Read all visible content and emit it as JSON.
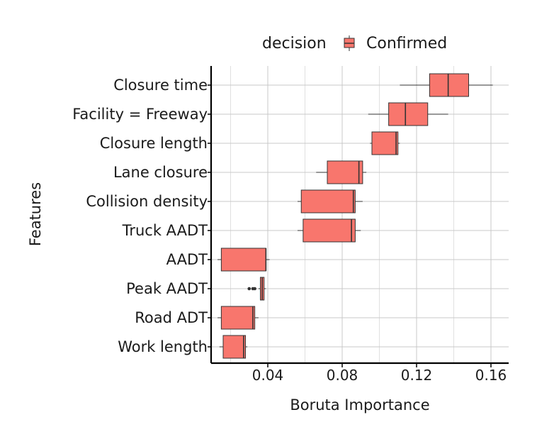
{
  "chart_data": {
    "type": "boxplot",
    "orientation": "horizontal",
    "title": "",
    "xlabel": "Boruta Importance",
    "ylabel": "Features",
    "xlim": [
      0.0,
      0.17
    ],
    "xticks": [
      0.04,
      0.08,
      0.12,
      0.16
    ],
    "xtick_labels": [
      "0.04",
      "0.08",
      "0.12",
      "0.16"
    ],
    "grid": true,
    "legend": {
      "title": "decision",
      "position": "top",
      "entries": [
        {
          "label": "Confirmed",
          "color": "#F8766D"
        }
      ]
    },
    "box_fill": "#F8766D",
    "box_stroke": "#333333",
    "categories": [
      "Closure time",
      "Facility = Freeway",
      "Closure length",
      "Lane closure",
      "Collision density",
      "Truck AADT",
      "AADT",
      "Peak AADT",
      "Road ADT",
      "Work length"
    ],
    "boxes": [
      {
        "feature": "Closure time",
        "whisker_low": 0.111,
        "q1": 0.127,
        "median": 0.137,
        "q3": 0.148,
        "whisker_high": 0.161,
        "outliers": []
      },
      {
        "feature": "Facility = Freeway",
        "whisker_low": 0.094,
        "q1": 0.105,
        "median": 0.114,
        "q3": 0.126,
        "whisker_high": 0.137,
        "outliers": []
      },
      {
        "feature": "Closure length",
        "whisker_low": 0.095,
        "q1": 0.096,
        "median": 0.109,
        "q3": 0.11,
        "whisker_high": 0.111,
        "outliers": []
      },
      {
        "feature": "Lane closure",
        "whisker_low": 0.066,
        "q1": 0.072,
        "median": 0.089,
        "q3": 0.091,
        "whisker_high": 0.093,
        "outliers": []
      },
      {
        "feature": "Collision density",
        "whisker_low": 0.056,
        "q1": 0.058,
        "median": 0.086,
        "q3": 0.087,
        "whisker_high": 0.091,
        "outliers": []
      },
      {
        "feature": "Truck AADT",
        "whisker_low": 0.056,
        "q1": 0.059,
        "median": 0.085,
        "q3": 0.087,
        "whisker_high": 0.09,
        "outliers": []
      },
      {
        "feature": "AADT",
        "whisker_low": 0.013,
        "q1": 0.015,
        "median": 0.039,
        "q3": 0.039,
        "whisker_high": 0.041,
        "outliers": []
      },
      {
        "feature": "Peak AADT",
        "whisker_low": 0.035,
        "q1": 0.036,
        "median": 0.037,
        "q3": 0.038,
        "whisker_high": 0.039,
        "outliers": [
          0.03,
          0.032,
          0.033
        ]
      },
      {
        "feature": "Road ADT",
        "whisker_low": 0.013,
        "q1": 0.015,
        "median": 0.032,
        "q3": 0.033,
        "whisker_high": 0.035,
        "outliers": []
      },
      {
        "feature": "Work length",
        "whisker_low": 0.014,
        "q1": 0.016,
        "median": 0.027,
        "q3": 0.028,
        "whisker_high": 0.029,
        "outliers": []
      }
    ]
  }
}
